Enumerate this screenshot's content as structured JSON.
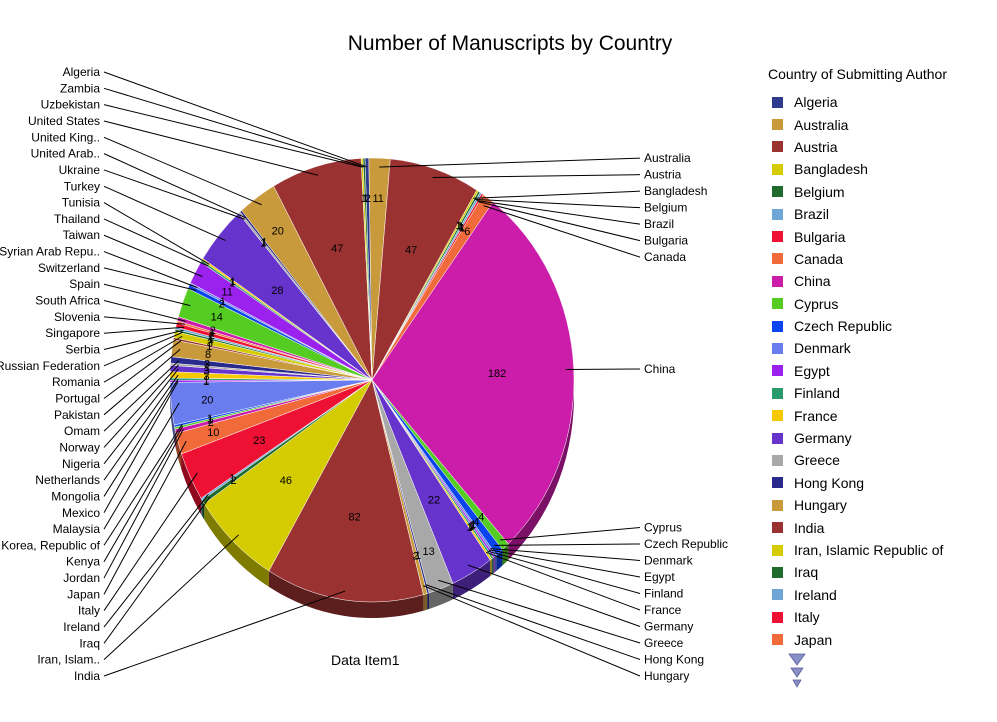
{
  "chart_data": {
    "type": "pie",
    "title": "Number of Manuscripts by Country",
    "series_label": "Data Item1",
    "legend_title": "Country of Submitting Author",
    "legend_position": "right",
    "slices": [
      {
        "label": "Algeria",
        "value": 2,
        "color": "#2e3a8c"
      },
      {
        "label": "Australia",
        "value": 11,
        "color": "#c99a3c"
      },
      {
        "label": "Austria",
        "value": 47,
        "color": "#9b3232"
      },
      {
        "label": "Bangladesh",
        "value": 1,
        "color": "#d4cc00"
      },
      {
        "label": "Belgium",
        "value": 1,
        "color": "#1f6b2e"
      },
      {
        "label": "Brazil",
        "value": 1,
        "color": "#6ea6d8"
      },
      {
        "label": "Bulgaria",
        "value": 1,
        "color": "#ee1133"
      },
      {
        "label": "Canada",
        "value": 6,
        "color": "#f06a3a"
      },
      {
        "label": "China",
        "value": 182,
        "color": "#cc1caa"
      },
      {
        "label": "Cyprus",
        "value": 4,
        "color": "#55cc22"
      },
      {
        "label": "Czech Republic",
        "value": 4,
        "color": "#0a44ee"
      },
      {
        "label": "Denmark",
        "value": 1,
        "color": "#6a7dee"
      },
      {
        "label": "Egypt",
        "value": 1,
        "color": "#9b22ee"
      },
      {
        "label": "Finland",
        "value": 1,
        "color": "#2a9a6a"
      },
      {
        "label": "France",
        "value": 1,
        "color": "#f5c800"
      },
      {
        "label": "Germany",
        "value": 22,
        "color": "#6633cc"
      },
      {
        "label": "Greece",
        "value": 13,
        "color": "#a8a8a8"
      },
      {
        "label": "Hong Kong",
        "value": 1,
        "color": "#2a2a8c"
      },
      {
        "label": "Hungary",
        "value": 2,
        "color": "#c99a3c"
      },
      {
        "label": "India",
        "value": 82,
        "color": "#9b3232"
      },
      {
        "label": "Iran, Islamic Republic of",
        "value": 46,
        "color": "#d4cc00"
      },
      {
        "label": "Iraq",
        "value": 2,
        "color": "#1f6b2e"
      },
      {
        "label": "Ireland",
        "value": 1,
        "color": "#6ea6d8"
      },
      {
        "label": "Italy",
        "value": 23,
        "color": "#ee1133"
      },
      {
        "label": "Japan",
        "value": 10,
        "color": "#f06a3a"
      },
      {
        "label": "Jordan",
        "value": 2,
        "color": "#cc1caa"
      },
      {
        "label": "Kenya",
        "value": 1,
        "color": "#55cc22"
      },
      {
        "label": "Korea, Republic of",
        "value": 1,
        "color": "#0a44ee"
      },
      {
        "label": "Malaysia",
        "value": 20,
        "color": "#6a7dee"
      },
      {
        "label": "Mexico",
        "value": 1,
        "color": "#9b22ee"
      },
      {
        "label": "Mongolia",
        "value": 1,
        "color": "#2a9a6a"
      },
      {
        "label": "Netherlands",
        "value": 3,
        "color": "#f5c800"
      },
      {
        "label": "Nigeria",
        "value": 3,
        "color": "#6633cc"
      },
      {
        "label": "Norway",
        "value": 1,
        "color": "#a8a8a8"
      },
      {
        "label": "Omam",
        "value": 3,
        "color": "#2a2a8c"
      },
      {
        "label": "Pakistan",
        "value": 8,
        "color": "#c99a3c"
      },
      {
        "label": "Portugal",
        "value": 1,
        "color": "#9b3232"
      },
      {
        "label": "Romania",
        "value": 3,
        "color": "#d4cc00"
      },
      {
        "label": "Russian Federation",
        "value": 1,
        "color": "#1f6b2e"
      },
      {
        "label": "Serbia",
        "value": 1,
        "color": "#6ea6d8"
      },
      {
        "label": "Singapore",
        "value": 2,
        "color": "#ee1133"
      },
      {
        "label": "Slovenia",
        "value": 1,
        "color": "#f06a3a"
      },
      {
        "label": "South Africa",
        "value": 2,
        "color": "#cc1caa"
      },
      {
        "label": "Spain",
        "value": 14,
        "color": "#55cc22"
      },
      {
        "label": "Switzerland",
        "value": 2,
        "color": "#0a44ee"
      },
      {
        "label": "Syrian Arab Repu..",
        "value": 1,
        "color": "#6a7dee"
      },
      {
        "label": "Taiwan",
        "value": 11,
        "color": "#9b22ee"
      },
      {
        "label": "Thailand",
        "value": 1,
        "color": "#2a9a6a"
      },
      {
        "label": "Tunisia",
        "value": 1,
        "color": "#f5c800"
      },
      {
        "label": "Turkey",
        "value": 28,
        "color": "#6633cc"
      },
      {
        "label": "Ukraine",
        "value": 1,
        "color": "#a8a8a8"
      },
      {
        "label": "United Arab..",
        "value": 1,
        "color": "#2a2a8c"
      },
      {
        "label": "United King..",
        "value": 20,
        "color": "#c99a3c"
      },
      {
        "label": "United States",
        "value": 47,
        "color": "#9b3232"
      },
      {
        "label": "Uzbekistan",
        "value": 1,
        "color": "#d4cc00"
      },
      {
        "label": "Zambia",
        "value": 1,
        "color": "#1f6b2e"
      }
    ],
    "pie_slice_labels": [
      "Algeria",
      "Australia",
      "Austria",
      "Bangladesh",
      "Belgium",
      "Brazil",
      "Bulgaria",
      "Canada",
      "China",
      "Cyprus",
      "Czech Republic",
      "Denmark",
      "Egypt",
      "Finland",
      "France",
      "Germany",
      "Greece",
      "Hong Kong",
      "Hungary",
      "India",
      "Iran, Islam..",
      "Iraq",
      "Ireland",
      "Italy",
      "Japan",
      "Jordan",
      "Kenya",
      "Korea, Republic of",
      "Malaysia",
      "Mexico",
      "Mongolia",
      "Netherlands",
      "Nigeria",
      "Norway",
      "Omam",
      "Pakistan",
      "Portugal",
      "Romania",
      "Russian Federation",
      "Serbia",
      "Singapore",
      "Slovenia",
      "South Africa",
      "Spain",
      "Switzerland",
      "Syrian Arab Repu..",
      "Taiwan",
      "Thailand",
      "Tunisia",
      "Turkey",
      "Ukraine",
      "United Arab..",
      "United King..",
      "United States",
      "Uzbekistan",
      "Zambia"
    ],
    "legend_visible": [
      "Algeria",
      "Australia",
      "Austria",
      "Bangladesh",
      "Belgium",
      "Brazil",
      "Bulgaria",
      "Canada",
      "China",
      "Cyprus",
      "Czech Republic",
      "Denmark",
      "Egypt",
      "Finland",
      "France",
      "Germany",
      "Greece",
      "Hong Kong",
      "Hungary",
      "India",
      "Iran, Islamic Republic of",
      "Iraq",
      "Ireland",
      "Italy",
      "Japan"
    ]
  },
  "legend": {
    "scroll_icon": "triangle-down-icon"
  }
}
